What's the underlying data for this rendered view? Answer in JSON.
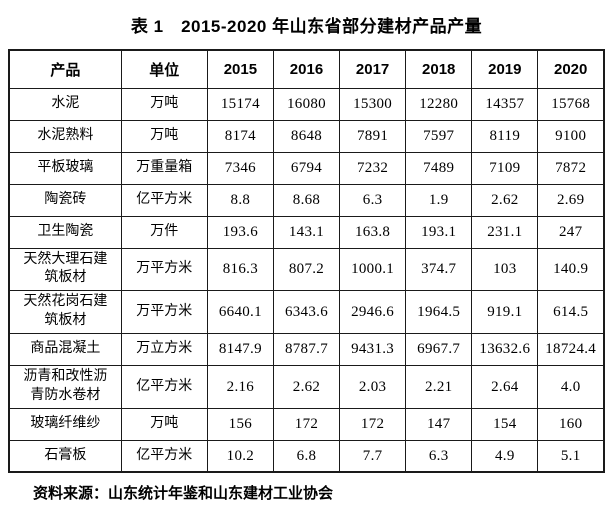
{
  "title": "表 1　2015-2020 年山东省部分建材产品产量",
  "source": "资料来源：山东统计年鉴和山东建材工业协会",
  "colors": {
    "text": "#000000",
    "border": "#1a1a1a",
    "background": "#ffffff"
  },
  "table": {
    "headers": [
      "产品",
      "单位",
      "2015",
      "2016",
      "2017",
      "2018",
      "2019",
      "2020"
    ],
    "rows": [
      {
        "product": "水泥",
        "unit": "万吨",
        "values": [
          "15174",
          "16080",
          "15300",
          "12280",
          "14357",
          "15768"
        ]
      },
      {
        "product": "水泥熟料",
        "unit": "万吨",
        "values": [
          "8174",
          "8648",
          "7891",
          "7597",
          "8119",
          "9100"
        ]
      },
      {
        "product": "平板玻璃",
        "unit": "万重量箱",
        "values": [
          "7346",
          "6794",
          "7232",
          "7489",
          "7109",
          "7872"
        ]
      },
      {
        "product": "陶瓷砖",
        "unit": "亿平方米",
        "values": [
          "8.8",
          "8.68",
          "6.3",
          "1.9",
          "2.62",
          "2.69"
        ]
      },
      {
        "product": "卫生陶瓷",
        "unit": "万件",
        "values": [
          "193.6",
          "143.1",
          "163.8",
          "193.1",
          "231.1",
          "247"
        ]
      },
      {
        "product": "天然大理石建筑板材",
        "unit": "万平方米",
        "values": [
          "816.3",
          "807.2",
          "1000.1",
          "374.7",
          "103",
          "140.9"
        ]
      },
      {
        "product": "天然花岗石建筑板材",
        "unit": "万平方米",
        "values": [
          "6640.1",
          "6343.6",
          "2946.6",
          "1964.5",
          "919.1",
          "614.5"
        ]
      },
      {
        "product": "商品混凝土",
        "unit": "万立方米",
        "values": [
          "8147.9",
          "8787.7",
          "9431.3",
          "6967.7",
          "13632.6",
          "18724.4"
        ]
      },
      {
        "product": "沥青和改性沥青防水卷材",
        "unit": "亿平方米",
        "values": [
          "2.16",
          "2.62",
          "2.03",
          "2.21",
          "2.64",
          "4.0"
        ]
      },
      {
        "product": "玻璃纤维纱",
        "unit": "万吨",
        "values": [
          "156",
          "172",
          "172",
          "147",
          "154",
          "160"
        ]
      },
      {
        "product": "石膏板",
        "unit": "亿平方米",
        "values": [
          "10.2",
          "6.8",
          "7.7",
          "6.3",
          "4.9",
          "5.1"
        ]
      }
    ]
  }
}
